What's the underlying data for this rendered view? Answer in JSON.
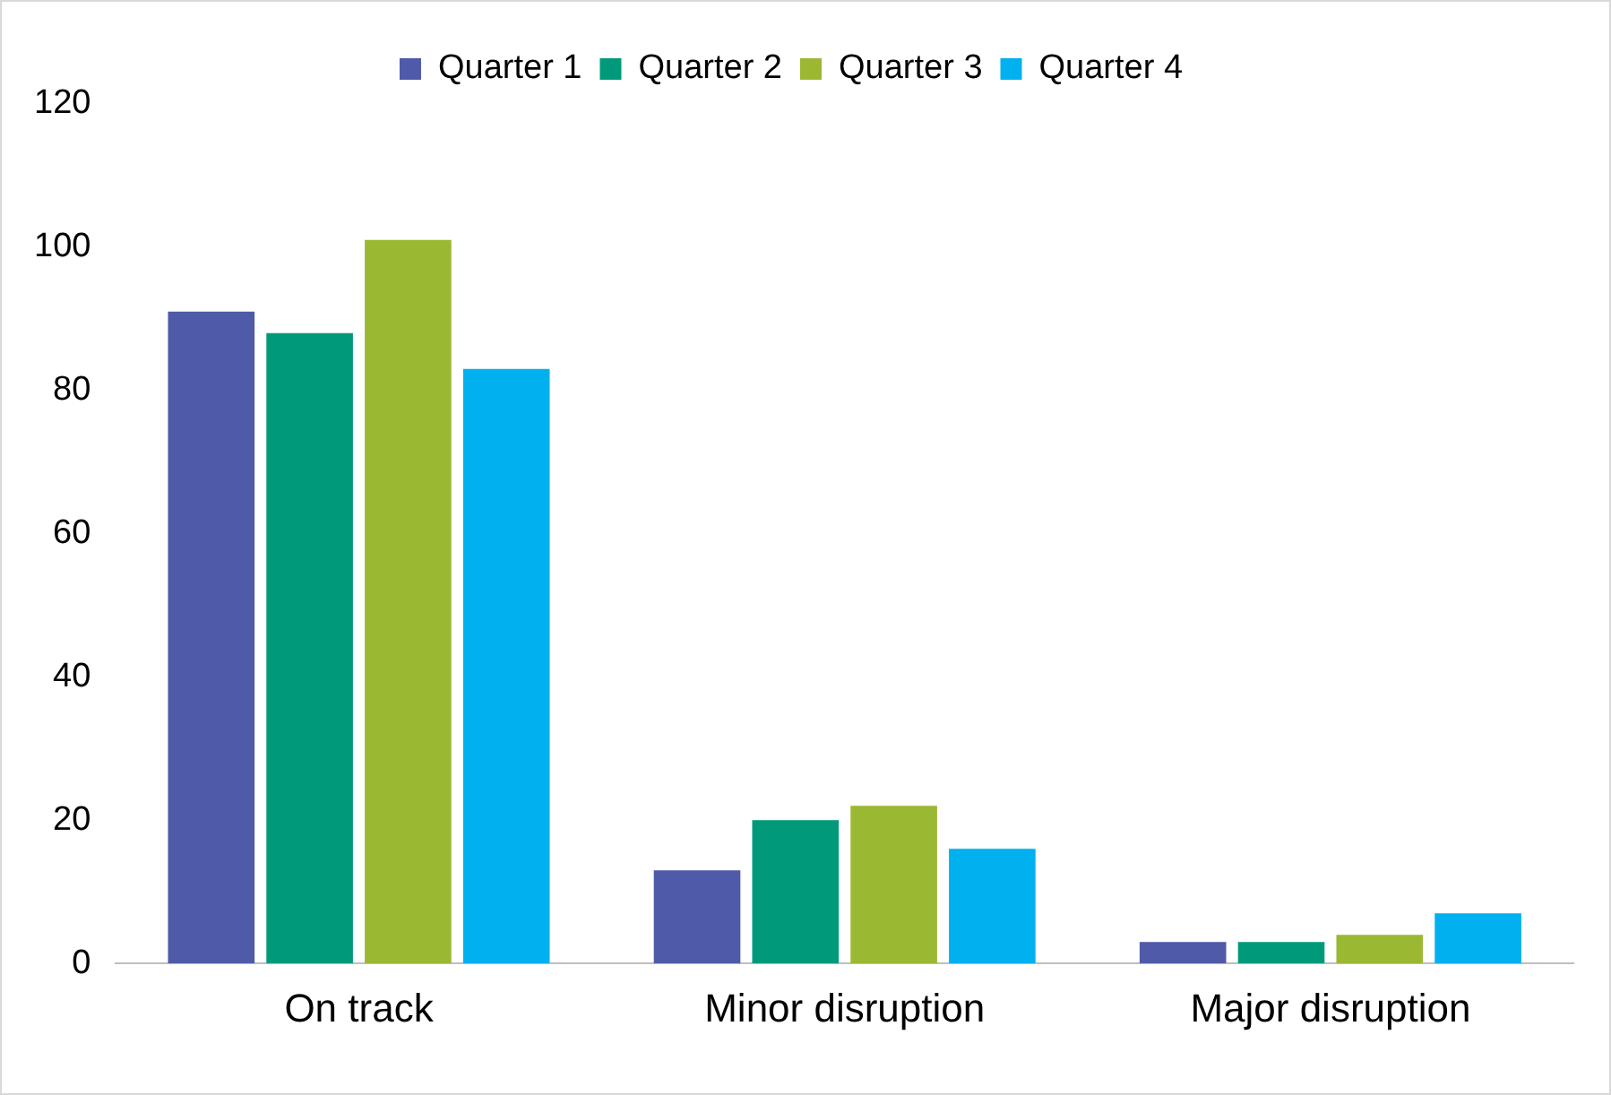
{
  "chart_data": {
    "type": "bar",
    "categories": [
      "On track",
      "Minor disruption",
      "Major disruption"
    ],
    "series": [
      {
        "name": "Quarter 1",
        "color": "#4f5aa8",
        "values": [
          91,
          13,
          3
        ]
      },
      {
        "name": "Quarter 2",
        "color": "#009a7b",
        "values": [
          88,
          20,
          3
        ]
      },
      {
        "name": "Quarter 3",
        "color": "#9bb833",
        "values": [
          101,
          22,
          4
        ]
      },
      {
        "name": "Quarter 4",
        "color": "#00b0ef",
        "values": [
          83,
          16,
          7
        ]
      }
    ],
    "ylim": [
      0,
      120
    ],
    "yticks": [
      0,
      20,
      40,
      60,
      80,
      100,
      120
    ],
    "grid": false,
    "legend": "top"
  }
}
